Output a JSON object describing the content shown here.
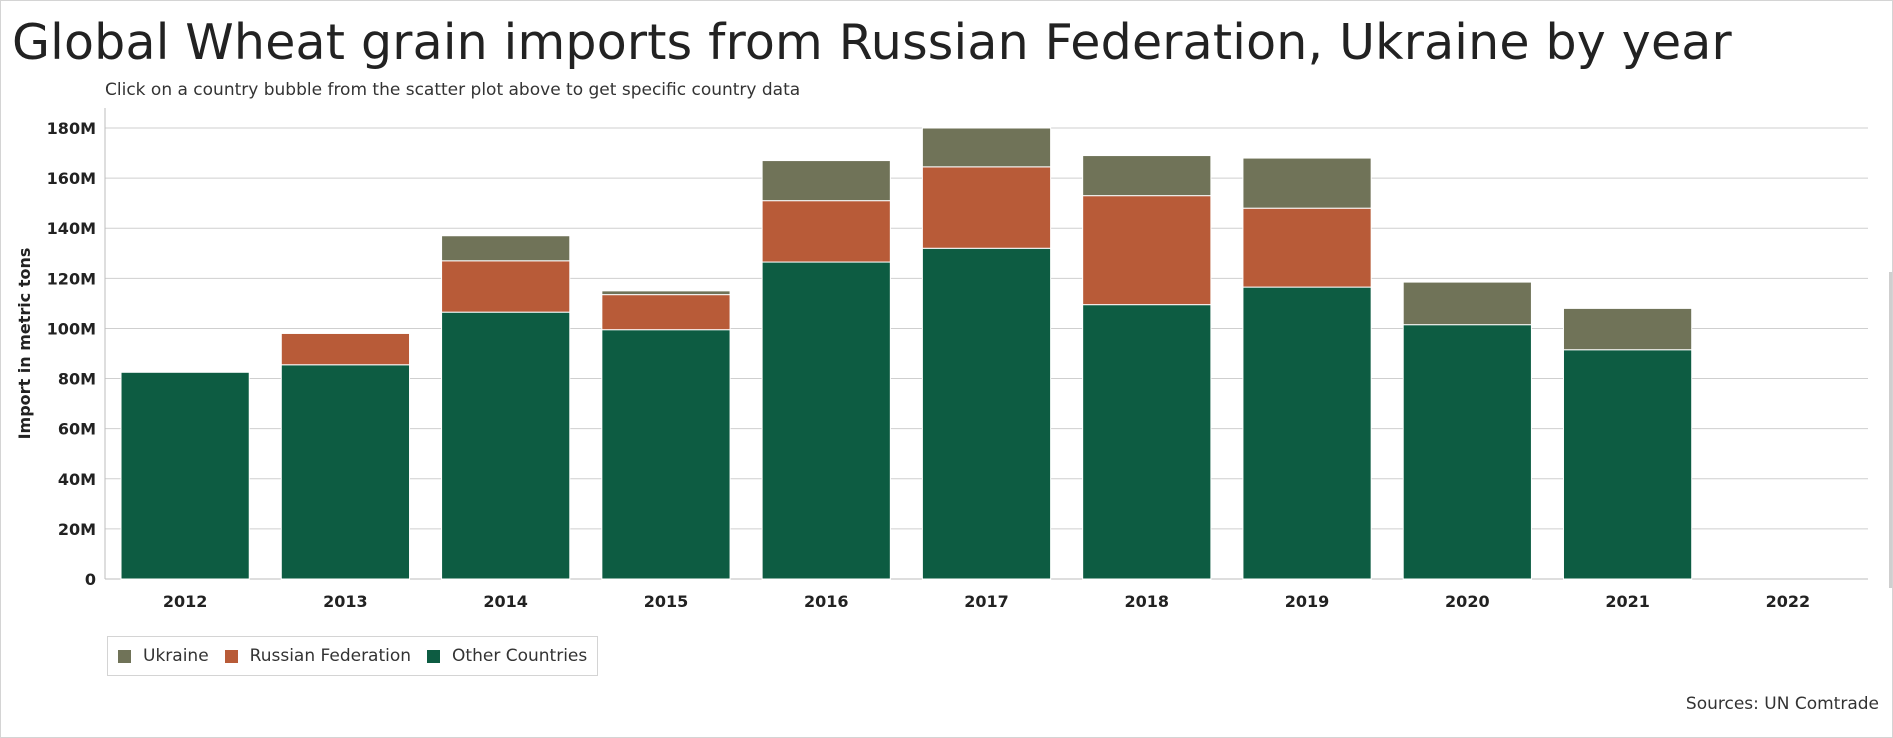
{
  "title": "Global Wheat grain imports from Russian Federation, Ukraine by year",
  "subtitle": "Click on a country bubble from the scatter plot above to get specific country data",
  "source": "Sources: UN Comtrade",
  "colors": {
    "ukraine": "#707358",
    "russia": "#b85b38",
    "other": "#0d5c42",
    "grid": "#cfcfcf",
    "axis": "#bdbdbd"
  },
  "chart_data": {
    "type": "bar",
    "stacked": true,
    "categories": [
      "2012",
      "2013",
      "2014",
      "2015",
      "2016",
      "2017",
      "2018",
      "2019",
      "2020",
      "2021",
      "2022"
    ],
    "series": [
      {
        "name": "Other Countries",
        "values": [
          82.5,
          85.5,
          106.5,
          99.5,
          126.5,
          132,
          109.5,
          116.5,
          101.5,
          91.5,
          0
        ]
      },
      {
        "name": "Russian Federation",
        "values": [
          0,
          12.5,
          20.5,
          14,
          24.5,
          32.5,
          43.5,
          31.5,
          0,
          0,
          0
        ]
      },
      {
        "name": "Ukraine",
        "values": [
          0,
          0,
          10,
          1.5,
          16,
          15.5,
          16,
          20,
          17,
          16.5,
          0
        ]
      }
    ],
    "legend_order": [
      "Ukraine",
      "Russian Federation",
      "Other Countries"
    ],
    "ylabel": "Import in metric tons",
    "xlabel": "",
    "ylim": [
      0,
      180
    ],
    "yticks": [
      "0",
      "20M",
      "40M",
      "60M",
      "80M",
      "100M",
      "120M",
      "140M",
      "160M",
      "180M"
    ],
    "ytick_values": [
      0,
      20,
      40,
      60,
      80,
      100,
      120,
      140,
      160,
      180
    ],
    "units": "millions of metric tons",
    "grid": true,
    "legend_position": "bottom-left"
  }
}
